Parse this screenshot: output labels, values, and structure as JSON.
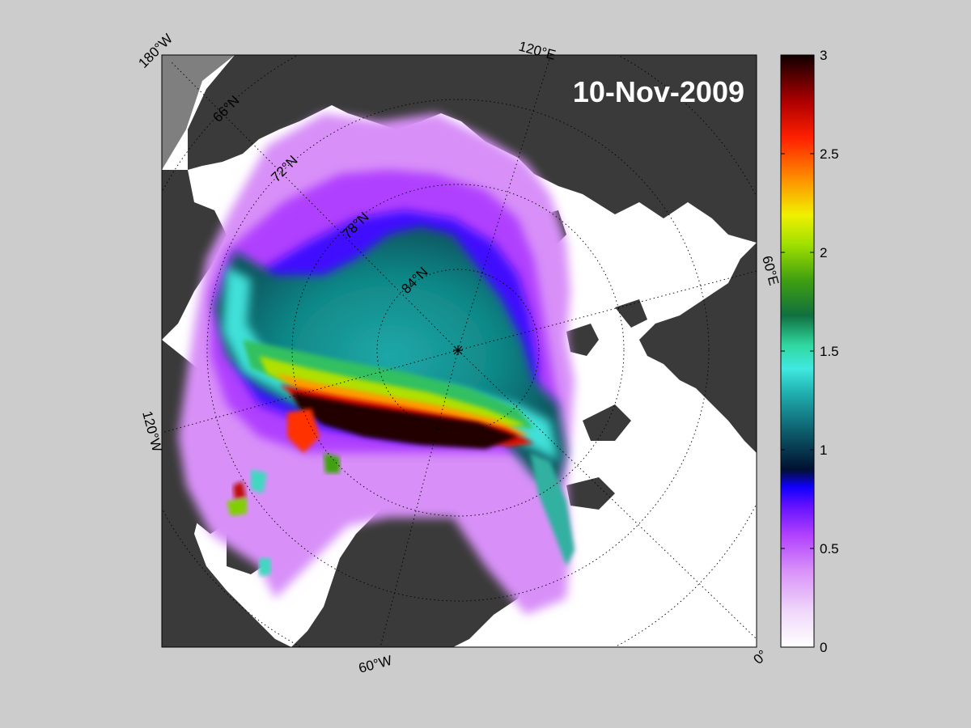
{
  "map": {
    "date_label": "10-Nov-2009",
    "longitude_labels": [
      "180°W",
      "120°E",
      "60°E",
      "0°",
      "60°W",
      "120°W"
    ],
    "latitude_labels": [
      "66°N",
      "72°N",
      "78°N",
      "84°N"
    ],
    "colors": {
      "ocean_open": "#ffffff",
      "land": "#3a3a3a",
      "land_outside": "#7f7f7f",
      "background": "#cccccc"
    }
  },
  "colorbar": {
    "min": 0,
    "max": 3,
    "ticks": [
      "0",
      "0.5",
      "1",
      "1.5",
      "2",
      "2.5",
      "3"
    ],
    "tick_values": [
      0,
      0.5,
      1,
      1.5,
      2,
      2.5,
      3
    ],
    "colormap": [
      "#ffffff",
      "#e8b8f8",
      "#bb44ff",
      "#8000ff",
      "#2000ff",
      "#001a2a",
      "#106070",
      "#20c8c0",
      "#40e8a0",
      "#108040",
      "#80d000",
      "#e8f000",
      "#ff9000",
      "#ff2000",
      "#c00000",
      "#200000"
    ]
  }
}
